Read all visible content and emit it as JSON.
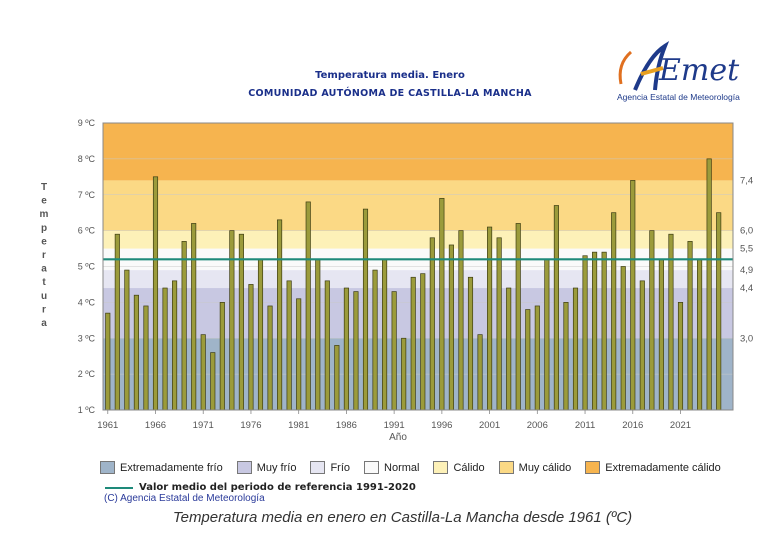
{
  "header": {
    "title": "Temperatura media. Enero",
    "subtitle": "COMUNIDAD AUTÓNOMA DE CASTILLA-LA MANCHA"
  },
  "logo": {
    "text": "AEMet",
    "caption": "Agencia Estatal de Meteorología"
  },
  "legend": {
    "items": [
      {
        "label": "Extremadamente frío",
        "color": "#9fb4c9"
      },
      {
        "label": "Muy frío",
        "color": "#c8c8e2"
      },
      {
        "label": "Frío",
        "color": "#e6e6f2"
      },
      {
        "label": "Normal",
        "color": "#fafafa"
      },
      {
        "label": "Cálido",
        "color": "#fdf1b8"
      },
      {
        "label": "Muy cálido",
        "color": "#fbd985"
      },
      {
        "label": "Extremadamente cálido",
        "color": "#f6b44f"
      }
    ],
    "reference": "Valor medio del periodo de referencia 1991-2020"
  },
  "copyright": "(C) Agencia Estatal de Meteorología",
  "caption": "Temperatura media en enero en Castilla-La Mancha desde 1961 (ºC)",
  "chart_data": {
    "type": "bar",
    "xlabel": "Año",
    "ylabel": "Temperatura",
    "ylim": [
      1,
      9
    ],
    "yticks": [
      "1 ºC",
      "2 ºC",
      "3 ºC",
      "4 ºC",
      "5 ºC",
      "6 ºC",
      "7 ºC",
      "8 ºC",
      "9 ºC"
    ],
    "xticks": [
      "1961",
      "1966",
      "1971",
      "1976",
      "1981",
      "1986",
      "1991",
      "1996",
      "2001",
      "2006",
      "2011",
      "2016",
      "2021"
    ],
    "reference_value": 5.2,
    "right_labels": [
      "7,4",
      "6,0",
      "5,5",
      "4,9",
      "4,4",
      "3,0"
    ],
    "bands": [
      {
        "from": 1,
        "to": 3.0,
        "color": "#9fb4c9"
      },
      {
        "from": 3.0,
        "to": 4.4,
        "color": "#c8c8e2"
      },
      {
        "from": 4.4,
        "to": 4.9,
        "color": "#e6e6f2"
      },
      {
        "from": 4.9,
        "to": 5.5,
        "color": "#fafafa"
      },
      {
        "from": 5.5,
        "to": 6.0,
        "color": "#fdf1b8"
      },
      {
        "from": 6.0,
        "to": 7.4,
        "color": "#fbd985"
      },
      {
        "from": 7.4,
        "to": 9,
        "color": "#f6b44f"
      }
    ],
    "series": [
      {
        "years": [
          1961,
          1962,
          1963,
          1964,
          1965,
          1966,
          1967,
          1968,
          1969,
          1970,
          1971,
          1972,
          1973,
          1974,
          1975,
          1976,
          1977,
          1978,
          1979,
          1980,
          1981,
          1982,
          1983,
          1984,
          1985,
          1986,
          1987,
          1988,
          1989,
          1990,
          1991,
          1992,
          1993,
          1994,
          1995,
          1996,
          1997,
          1998,
          1999,
          2000,
          2001,
          2002,
          2003,
          2004,
          2005,
          2006,
          2007,
          2008,
          2009,
          2010,
          2011,
          2012,
          2013,
          2014,
          2015,
          2016,
          2017,
          2018,
          2019,
          2020,
          2021,
          2022,
          2023,
          2024,
          2025
        ],
        "values": [
          3.7,
          5.9,
          4.9,
          4.2,
          3.9,
          7.5,
          4.4,
          4.6,
          5.7,
          6.2,
          3.1,
          2.6,
          4.0,
          6.0,
          5.9,
          4.5,
          5.2,
          3.9,
          6.3,
          4.6,
          4.1,
          6.8,
          5.2,
          4.6,
          2.8,
          4.4,
          4.3,
          6.6,
          4.9,
          5.2,
          4.3,
          3.0,
          4.7,
          4.8,
          5.8,
          6.9,
          5.6,
          6.0,
          4.7,
          3.1,
          6.1,
          5.8,
          4.4,
          6.2,
          3.8,
          3.9,
          5.2,
          6.7,
          4.0,
          4.4,
          5.3,
          5.4,
          5.4,
          6.5,
          5.0,
          7.4,
          4.6,
          6.0,
          5.2,
          5.9,
          4.0,
          5.7,
          5.2,
          8.0,
          6.5
        ]
      }
    ]
  }
}
